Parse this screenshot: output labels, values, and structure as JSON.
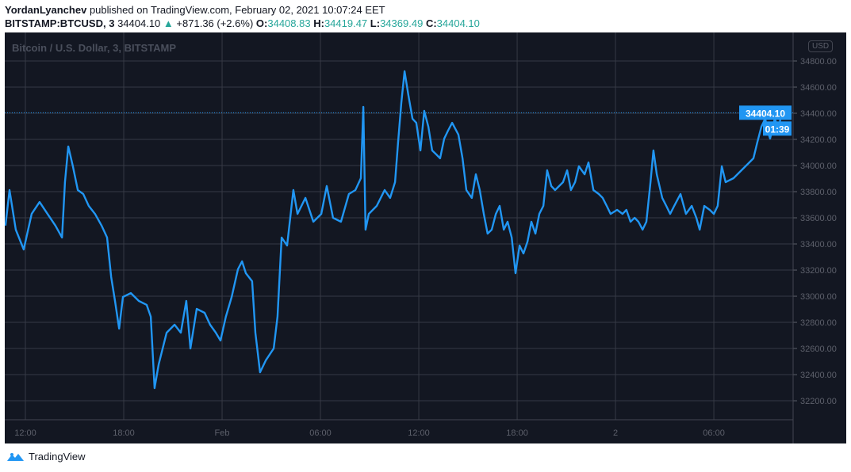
{
  "header": {
    "author": "YordanLyanchev",
    "published": "published on TradingView.com, February 02, 2021 10:07:24 EET",
    "symbol": "BITSTAMP:BTCUSD, 3",
    "last": "34404.10",
    "change": "+871.36 (+2.6%)",
    "o_label": "O:",
    "o": "34408.83",
    "h_label": "H:",
    "h": "34419.47",
    "l_label": "L:",
    "l": "34369.49",
    "c_label": "C:",
    "c": "34404.10",
    "up_arrow": "▲"
  },
  "chart_title": "Bitcoin / U.S. Dollar, 3, BITSTAMP",
  "currency": "USD",
  "footer": {
    "brand": "TradingView",
    "icon": "tradingview-logo-icon"
  },
  "colors": {
    "line": "#2196f3",
    "background": "#131722",
    "grid": "#363a45",
    "up": "#26a69a"
  },
  "chart_data": {
    "type": "line",
    "series": [
      {
        "values": [
          [
            "2021-01-31T10:47",
            33540
          ],
          [
            "2021-01-31T11:02",
            33812
          ],
          [
            "2021-01-31T11:25",
            33509
          ],
          [
            "2021-01-31T11:54",
            33358
          ],
          [
            "2021-01-31T12:23",
            33630
          ],
          [
            "2021-01-31T12:52",
            33721
          ],
          [
            "2021-01-31T13:21",
            33630
          ],
          [
            "2021-01-31T13:50",
            33540
          ],
          [
            "2021-01-31T14:14",
            33449
          ],
          [
            "2021-01-31T14:25",
            33873
          ],
          [
            "2021-01-31T14:37",
            34146
          ],
          [
            "2021-01-31T14:54",
            33994
          ],
          [
            "2021-01-31T15:12",
            33812
          ],
          [
            "2021-01-31T15:32",
            33782
          ],
          [
            "2021-01-31T15:52",
            33691
          ],
          [
            "2021-01-31T16:15",
            33630
          ],
          [
            "2021-01-31T16:39",
            33540
          ],
          [
            "2021-01-31T16:59",
            33449
          ],
          [
            "2021-01-31T17:14",
            33146
          ],
          [
            "2021-01-31T17:28",
            32964
          ],
          [
            "2021-01-31T17:43",
            32752
          ],
          [
            "2021-01-31T17:57",
            32994
          ],
          [
            "2021-01-31T18:26",
            33024
          ],
          [
            "2021-01-31T18:55",
            32964
          ],
          [
            "2021-01-31T19:24",
            32934
          ],
          [
            "2021-01-31T19:39",
            32843
          ],
          [
            "2021-01-31T19:53",
            32297
          ],
          [
            "2021-01-31T20:08",
            32479
          ],
          [
            "2021-01-31T20:37",
            32721
          ],
          [
            "2021-01-31T21:06",
            32782
          ],
          [
            "2021-01-31T21:29",
            32721
          ],
          [
            "2021-01-31T21:49",
            32964
          ],
          [
            "2021-01-31T22:04",
            32600
          ],
          [
            "2021-01-31T22:27",
            32903
          ],
          [
            "2021-01-31T22:56",
            32873
          ],
          [
            "2021-01-31T23:16",
            32782
          ],
          [
            "2021-01-31T23:37",
            32721
          ],
          [
            "2021-01-31T23:54",
            32661
          ],
          [
            "2021-02-01T00:14",
            32843
          ],
          [
            "2021-02-01T00:35",
            32994
          ],
          [
            "2021-02-01T00:58",
            33206
          ],
          [
            "2021-02-01T01:13",
            33267
          ],
          [
            "2021-02-01T01:27",
            33176
          ],
          [
            "2021-02-01T01:50",
            33115
          ],
          [
            "2021-02-01T02:02",
            32721
          ],
          [
            "2021-02-01T02:19",
            32418
          ],
          [
            "2021-02-01T02:40",
            32509
          ],
          [
            "2021-02-01T03:09",
            32600
          ],
          [
            "2021-02-01T03:23",
            32843
          ],
          [
            "2021-02-01T03:38",
            33449
          ],
          [
            "2021-02-01T03:58",
            33388
          ],
          [
            "2021-02-01T04:21",
            33812
          ],
          [
            "2021-02-01T04:36",
            33630
          ],
          [
            "2021-02-01T05:05",
            33752
          ],
          [
            "2021-02-01T05:34",
            33570
          ],
          [
            "2021-02-01T06:03",
            33630
          ],
          [
            "2021-02-01T06:23",
            33843
          ],
          [
            "2021-02-01T06:46",
            33600
          ],
          [
            "2021-02-01T07:15",
            33570
          ],
          [
            "2021-02-01T07:44",
            33782
          ],
          [
            "2021-02-01T08:08",
            33812
          ],
          [
            "2021-02-01T08:28",
            33903
          ],
          [
            "2021-02-01T08:37",
            34449
          ],
          [
            "2021-02-01T08:45",
            33509
          ],
          [
            "2021-02-01T08:57",
            33630
          ],
          [
            "2021-02-01T09:26",
            33691
          ],
          [
            "2021-02-01T09:55",
            33812
          ],
          [
            "2021-02-01T10:15",
            33752
          ],
          [
            "2021-02-01T10:33",
            33873
          ],
          [
            "2021-02-01T10:44",
            34176
          ],
          [
            "2021-02-01T10:56",
            34479
          ],
          [
            "2021-02-01T11:08",
            34721
          ],
          [
            "2021-02-01T11:22",
            34539
          ],
          [
            "2021-02-01T11:37",
            34358
          ],
          [
            "2021-02-01T11:51",
            34327
          ],
          [
            "2021-02-01T12:06",
            34115
          ],
          [
            "2021-02-01T12:20",
            34418
          ],
          [
            "2021-02-01T12:35",
            34297
          ],
          [
            "2021-02-01T12:49",
            34115
          ],
          [
            "2021-02-01T13:04",
            34085
          ],
          [
            "2021-02-01T13:18",
            34055
          ],
          [
            "2021-02-01T13:33",
            34206
          ],
          [
            "2021-02-01T13:47",
            34267
          ],
          [
            "2021-02-01T14:02",
            34327
          ],
          [
            "2021-02-01T14:25",
            34236
          ],
          [
            "2021-02-01T14:40",
            34055
          ],
          [
            "2021-02-01T14:54",
            33812
          ],
          [
            "2021-02-01T15:14",
            33752
          ],
          [
            "2021-02-01T15:29",
            33933
          ],
          [
            "2021-02-01T15:43",
            33812
          ],
          [
            "2021-02-01T15:58",
            33630
          ],
          [
            "2021-02-01T16:12",
            33479
          ],
          [
            "2021-02-01T16:27",
            33509
          ],
          [
            "2021-02-01T16:42",
            33630
          ],
          [
            "2021-02-01T16:56",
            33691
          ],
          [
            "2021-02-01T17:11",
            33509
          ],
          [
            "2021-02-01T17:25",
            33570
          ],
          [
            "2021-02-01T17:40",
            33449
          ],
          [
            "2021-02-01T17:54",
            33176
          ],
          [
            "2021-02-01T18:09",
            33388
          ],
          [
            "2021-02-01T18:23",
            33327
          ],
          [
            "2021-02-01T18:38",
            33418
          ],
          [
            "2021-02-01T18:52",
            33570
          ],
          [
            "2021-02-01T19:07",
            33479
          ],
          [
            "2021-02-01T19:21",
            33630
          ],
          [
            "2021-02-01T19:36",
            33691
          ],
          [
            "2021-02-01T19:50",
            33964
          ],
          [
            "2021-02-01T20:05",
            33843
          ],
          [
            "2021-02-01T20:19",
            33812
          ],
          [
            "2021-02-01T20:48",
            33873
          ],
          [
            "2021-02-01T21:03",
            33964
          ],
          [
            "2021-02-01T21:17",
            33812
          ],
          [
            "2021-02-01T21:32",
            33873
          ],
          [
            "2021-02-01T21:46",
            33994
          ],
          [
            "2021-02-01T22:07",
            33933
          ],
          [
            "2021-02-01T22:21",
            34024
          ],
          [
            "2021-02-01T22:39",
            33812
          ],
          [
            "2021-02-01T22:59",
            33782
          ],
          [
            "2021-02-01T23:13",
            33752
          ],
          [
            "2021-02-01T23:28",
            33691
          ],
          [
            "2021-02-01T23:42",
            33630
          ],
          [
            "2021-02-02T00:06",
            33661
          ],
          [
            "2021-02-02T00:26",
            33630
          ],
          [
            "2021-02-02T00:40",
            33661
          ],
          [
            "2021-02-02T00:55",
            33570
          ],
          [
            "2021-02-02T01:10",
            33600
          ],
          [
            "2021-02-02T01:24",
            33570
          ],
          [
            "2021-02-02T01:39",
            33509
          ],
          [
            "2021-02-02T01:53",
            33570
          ],
          [
            "2021-02-02T02:08",
            33873
          ],
          [
            "2021-02-02T02:19",
            34115
          ],
          [
            "2021-02-02T02:31",
            33933
          ],
          [
            "2021-02-02T02:51",
            33752
          ],
          [
            "2021-02-02T03:06",
            33691
          ],
          [
            "2021-02-02T03:20",
            33630
          ],
          [
            "2021-02-02T03:35",
            33691
          ],
          [
            "2021-02-02T03:58",
            33782
          ],
          [
            "2021-02-02T04:18",
            33630
          ],
          [
            "2021-02-02T04:39",
            33691
          ],
          [
            "2021-02-02T04:56",
            33600
          ],
          [
            "2021-02-02T05:08",
            33509
          ],
          [
            "2021-02-02T05:25",
            33691
          ],
          [
            "2021-02-02T05:45",
            33661
          ],
          [
            "2021-02-02T06:00",
            33630
          ],
          [
            "2021-02-02T06:14",
            33691
          ],
          [
            "2021-02-02T06:29",
            33994
          ],
          [
            "2021-02-02T06:43",
            33873
          ],
          [
            "2021-02-02T07:12",
            33903
          ],
          [
            "2021-02-02T07:41",
            33964
          ],
          [
            "2021-02-02T08:10",
            34024
          ],
          [
            "2021-02-02T08:25",
            34055
          ],
          [
            "2021-02-02T08:39",
            34176
          ],
          [
            "2021-02-02T08:54",
            34297
          ],
          [
            "2021-02-02T09:08",
            34358
          ],
          [
            "2021-02-02T09:17",
            34267
          ],
          [
            "2021-02-02T09:26",
            34206
          ],
          [
            "2021-02-02T09:43",
            34358
          ],
          [
            "2021-02-02T09:58",
            34267
          ],
          [
            "2021-02-02T10:06",
            34404.1
          ]
        ]
      }
    ],
    "x_ticks": [
      [
        "2021-01-31T12:00",
        "12:00"
      ],
      [
        "2021-01-31T18:00",
        "18:00"
      ],
      [
        "2021-02-01T00:00",
        "Feb"
      ],
      [
        "2021-02-01T06:00",
        "06:00"
      ],
      [
        "2021-02-01T12:00",
        "12:00"
      ],
      [
        "2021-02-01T18:00",
        "18:00"
      ],
      [
        "2021-02-02T00:00",
        "2"
      ],
      [
        "2021-02-02T06:00",
        "06:00"
      ]
    ],
    "y_ticks": [
      "32200.00",
      "32400.00",
      "32600.00",
      "32800.00",
      "33000.00",
      "33200.00",
      "33400.00",
      "33600.00",
      "33800.00",
      "34000.00",
      "34200.00",
      "34400.00",
      "34600.00",
      "34800.00"
    ],
    "last_price_label": "34404.10",
    "countdown": "01:39",
    "grid": true
  }
}
